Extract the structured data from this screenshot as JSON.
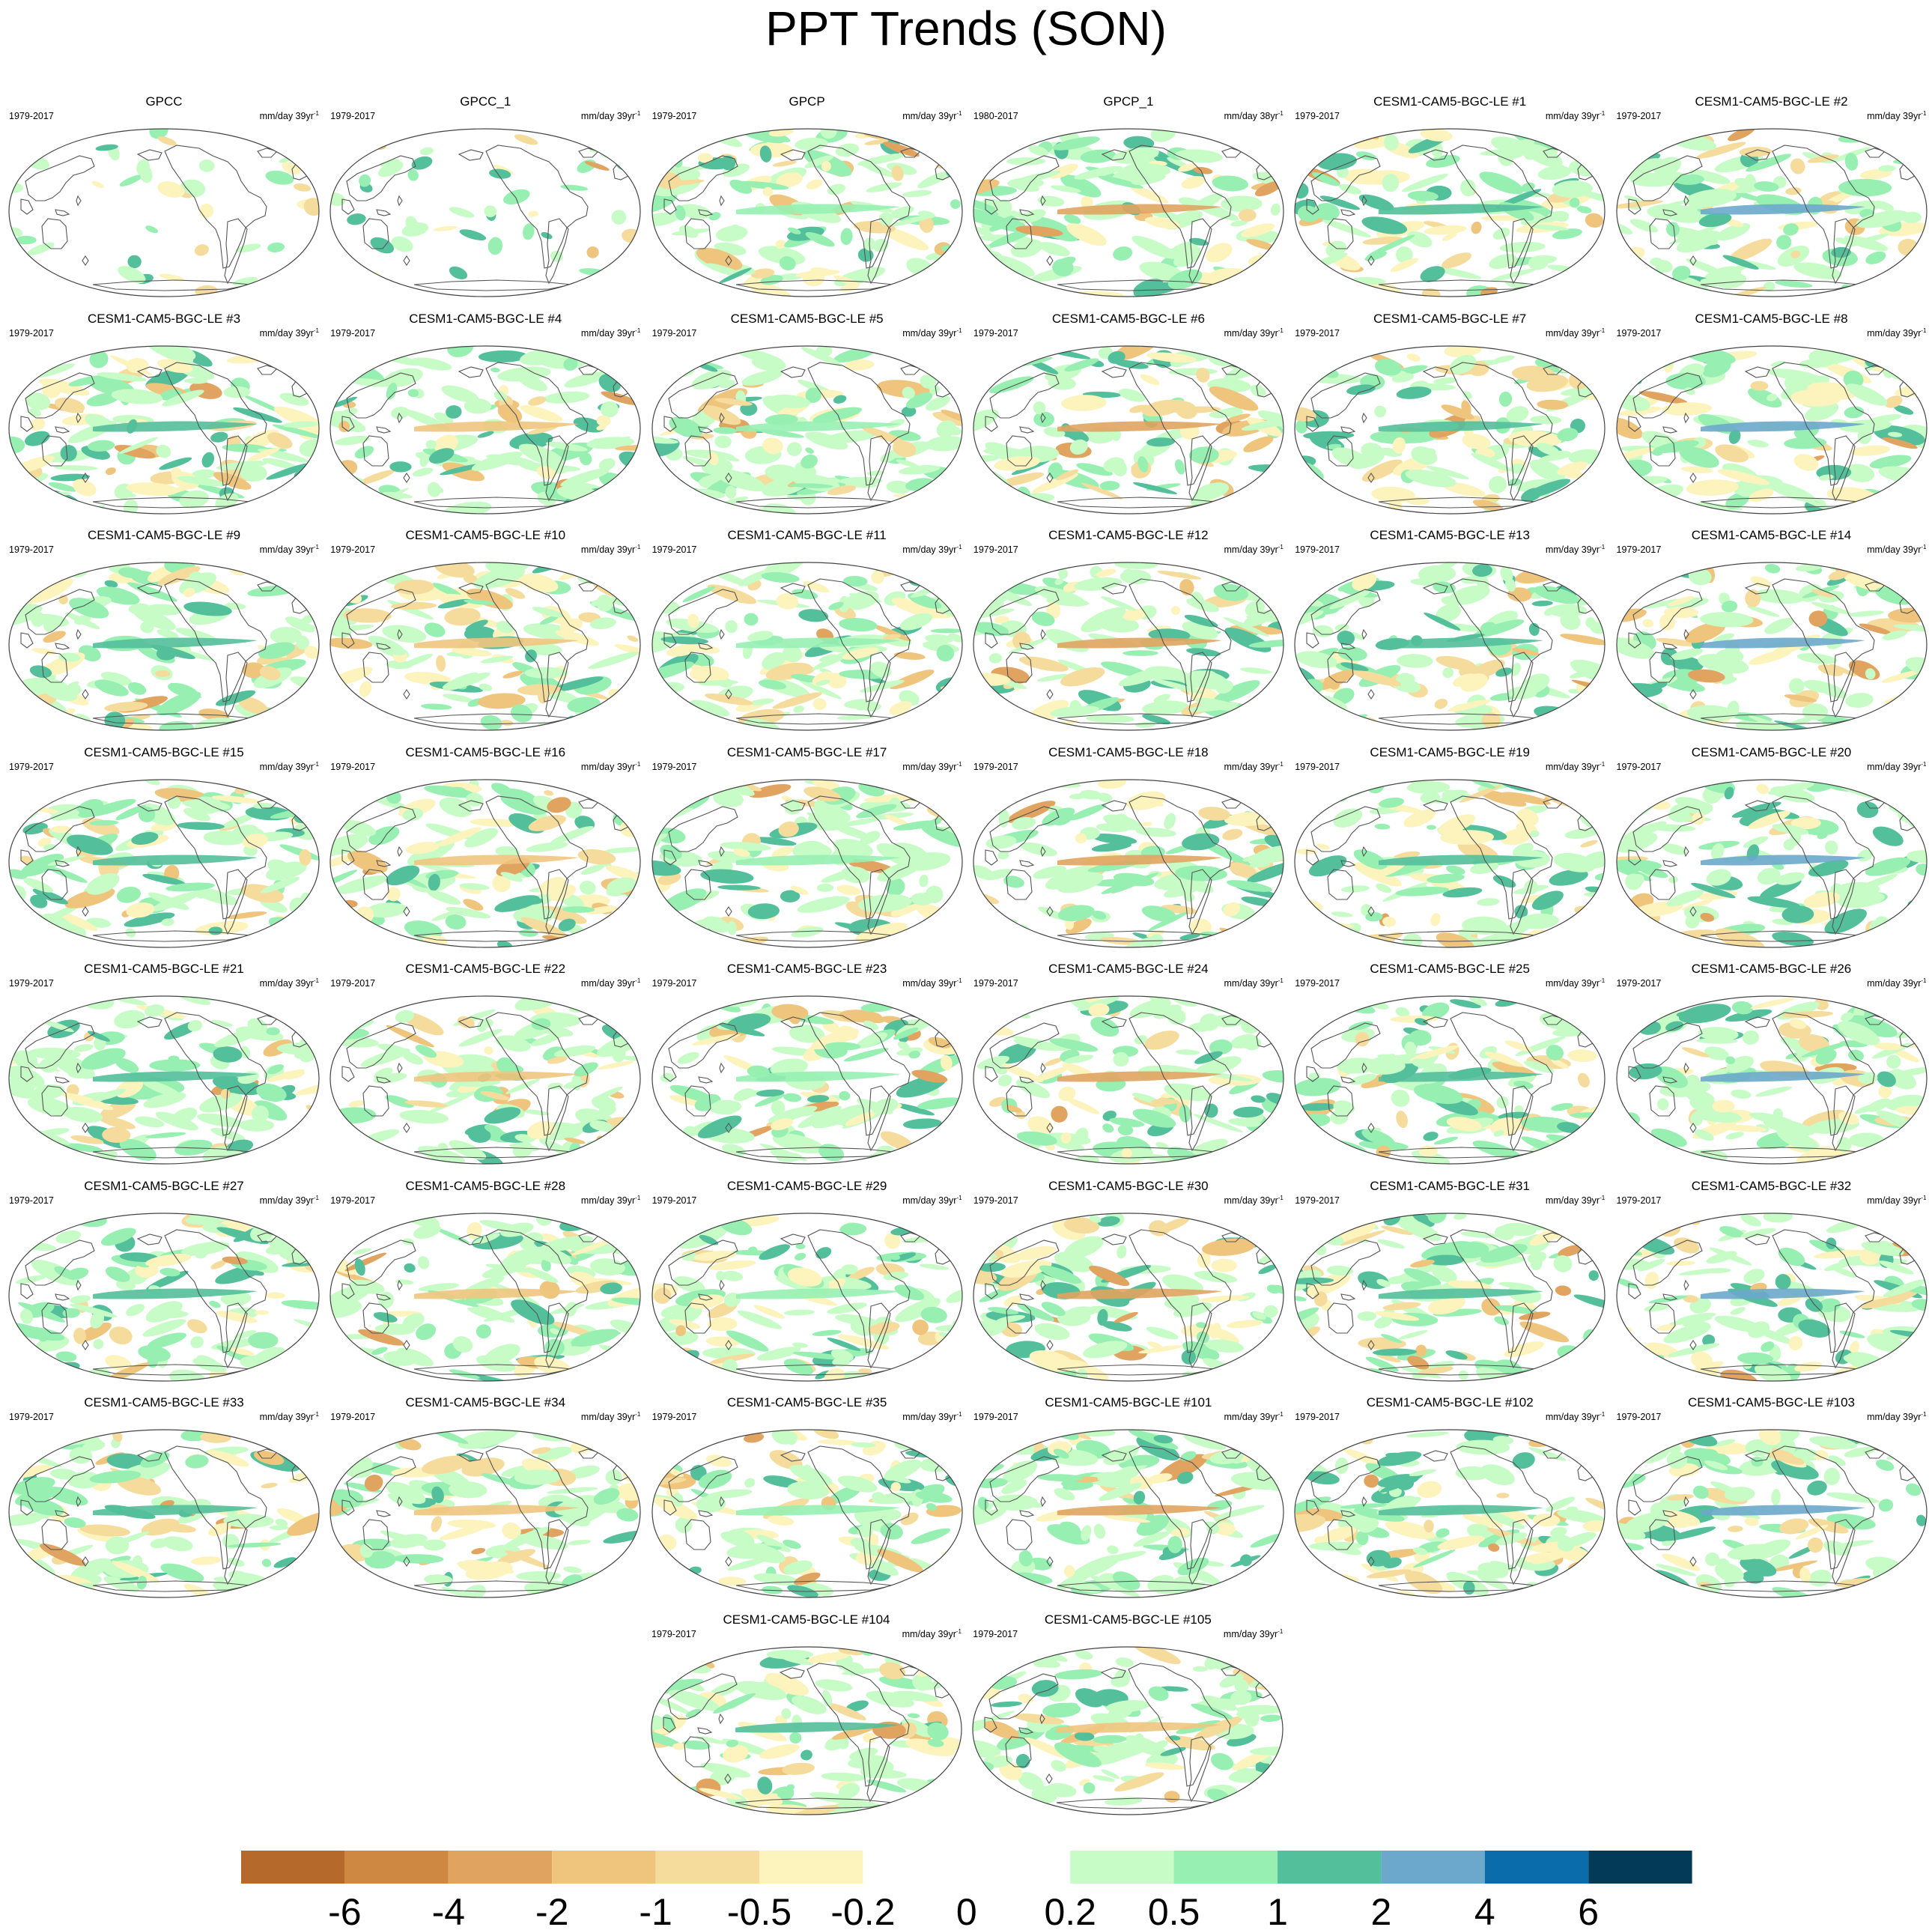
{
  "title": "PPT Trends (SON)",
  "units_prefix": "mm/day",
  "units_suffix": "yr",
  "units_exp": "-1",
  "panels": [
    {
      "title": "GPCC",
      "period": "1979-2017",
      "years": "39",
      "dataset": "obs-land"
    },
    {
      "title": "GPCC_1",
      "period": "1979-2017",
      "years": "39",
      "dataset": "obs-land"
    },
    {
      "title": "GPCP",
      "period": "1979-2017",
      "years": "39",
      "dataset": "obs"
    },
    {
      "title": "GPCP_1",
      "period": "1980-2017",
      "years": "38",
      "dataset": "obs"
    },
    {
      "title": "CESM1-CAM5-BGC-LE #1",
      "period": "1979-2017",
      "years": "39",
      "dataset": "model"
    },
    {
      "title": "CESM1-CAM5-BGC-LE #2",
      "period": "1979-2017",
      "years": "39",
      "dataset": "model"
    },
    {
      "title": "CESM1-CAM5-BGC-LE #3",
      "period": "1979-2017",
      "years": "39",
      "dataset": "model"
    },
    {
      "title": "CESM1-CAM5-BGC-LE #4",
      "period": "1979-2017",
      "years": "39",
      "dataset": "model"
    },
    {
      "title": "CESM1-CAM5-BGC-LE #5",
      "period": "1979-2017",
      "years": "39",
      "dataset": "model"
    },
    {
      "title": "CESM1-CAM5-BGC-LE #6",
      "period": "1979-2017",
      "years": "39",
      "dataset": "model"
    },
    {
      "title": "CESM1-CAM5-BGC-LE #7",
      "period": "1979-2017",
      "years": "39",
      "dataset": "model"
    },
    {
      "title": "CESM1-CAM5-BGC-LE #8",
      "period": "1979-2017",
      "years": "39",
      "dataset": "model"
    },
    {
      "title": "CESM1-CAM5-BGC-LE #9",
      "period": "1979-2017",
      "years": "39",
      "dataset": "model"
    },
    {
      "title": "CESM1-CAM5-BGC-LE #10",
      "period": "1979-2017",
      "years": "39",
      "dataset": "model"
    },
    {
      "title": "CESM1-CAM5-BGC-LE #11",
      "period": "1979-2017",
      "years": "39",
      "dataset": "model"
    },
    {
      "title": "CESM1-CAM5-BGC-LE #12",
      "period": "1979-2017",
      "years": "39",
      "dataset": "model"
    },
    {
      "title": "CESM1-CAM5-BGC-LE #13",
      "period": "1979-2017",
      "years": "39",
      "dataset": "model"
    },
    {
      "title": "CESM1-CAM5-BGC-LE #14",
      "period": "1979-2017",
      "years": "39",
      "dataset": "model"
    },
    {
      "title": "CESM1-CAM5-BGC-LE #15",
      "period": "1979-2017",
      "years": "39",
      "dataset": "model"
    },
    {
      "title": "CESM1-CAM5-BGC-LE #16",
      "period": "1979-2017",
      "years": "39",
      "dataset": "model"
    },
    {
      "title": "CESM1-CAM5-BGC-LE #17",
      "period": "1979-2017",
      "years": "39",
      "dataset": "model"
    },
    {
      "title": "CESM1-CAM5-BGC-LE #18",
      "period": "1979-2017",
      "years": "39",
      "dataset": "model"
    },
    {
      "title": "CESM1-CAM5-BGC-LE #19",
      "period": "1979-2017",
      "years": "39",
      "dataset": "model"
    },
    {
      "title": "CESM1-CAM5-BGC-LE #20",
      "period": "1979-2017",
      "years": "39",
      "dataset": "model"
    },
    {
      "title": "CESM1-CAM5-BGC-LE #21",
      "period": "1979-2017",
      "years": "39",
      "dataset": "model"
    },
    {
      "title": "CESM1-CAM5-BGC-LE #22",
      "period": "1979-2017",
      "years": "39",
      "dataset": "model"
    },
    {
      "title": "CESM1-CAM5-BGC-LE #23",
      "period": "1979-2017",
      "years": "39",
      "dataset": "model"
    },
    {
      "title": "CESM1-CAM5-BGC-LE #24",
      "period": "1979-2017",
      "years": "39",
      "dataset": "model"
    },
    {
      "title": "CESM1-CAM5-BGC-LE #25",
      "period": "1979-2017",
      "years": "39",
      "dataset": "model"
    },
    {
      "title": "CESM1-CAM5-BGC-LE #26",
      "period": "1979-2017",
      "years": "39",
      "dataset": "model"
    },
    {
      "title": "CESM1-CAM5-BGC-LE #27",
      "period": "1979-2017",
      "years": "39",
      "dataset": "model"
    },
    {
      "title": "CESM1-CAM5-BGC-LE #28",
      "period": "1979-2017",
      "years": "39",
      "dataset": "model"
    },
    {
      "title": "CESM1-CAM5-BGC-LE #29",
      "period": "1979-2017",
      "years": "39",
      "dataset": "model"
    },
    {
      "title": "CESM1-CAM5-BGC-LE #30",
      "period": "1979-2017",
      "years": "39",
      "dataset": "model"
    },
    {
      "title": "CESM1-CAM5-BGC-LE #31",
      "period": "1979-2017",
      "years": "39",
      "dataset": "model"
    },
    {
      "title": "CESM1-CAM5-BGC-LE #32",
      "period": "1979-2017",
      "years": "39",
      "dataset": "model"
    },
    {
      "title": "CESM1-CAM5-BGC-LE #33",
      "period": "1979-2017",
      "years": "39",
      "dataset": "model"
    },
    {
      "title": "CESM1-CAM5-BGC-LE #34",
      "period": "1979-2017",
      "years": "39",
      "dataset": "model"
    },
    {
      "title": "CESM1-CAM5-BGC-LE #35",
      "period": "1979-2017",
      "years": "39",
      "dataset": "model"
    },
    {
      "title": "CESM1-CAM5-BGC-LE #101",
      "period": "1979-2017",
      "years": "39",
      "dataset": "model"
    },
    {
      "title": "CESM1-CAM5-BGC-LE #102",
      "period": "1979-2017",
      "years": "39",
      "dataset": "model"
    },
    {
      "title": "CESM1-CAM5-BGC-LE #103",
      "period": "1979-2017",
      "years": "39",
      "dataset": "model"
    },
    {
      "title": "CESM1-CAM5-BGC-LE #104",
      "period": "1979-2017",
      "years": "39",
      "dataset": "model"
    },
    {
      "title": "CESM1-CAM5-BGC-LE #105",
      "period": "1979-2017",
      "years": "39",
      "dataset": "model"
    }
  ],
  "chart_data": {
    "type": "heatmap",
    "title": "PPT Trends (SON)",
    "projection": "Robinson",
    "panel_count": 44,
    "levels": [
      -6,
      -4,
      -2,
      -1,
      -0.5,
      -0.2,
      0,
      0.2,
      0.5,
      1,
      2,
      4,
      6
    ],
    "tick_labels": [
      "-6",
      "-4",
      "-2",
      "-1",
      "-0.5",
      "-0.2",
      "0",
      "0.2",
      "0.5",
      "1",
      "2",
      "4",
      "6"
    ],
    "colors": [
      "#b5692a",
      "#cf8842",
      "#e0a460",
      "#efc57e",
      "#f5dc9c",
      "#fdf3bc",
      "#ffffff",
      "#ffffff",
      "#c7fcc7",
      "#97efb2",
      "#53bf9b",
      "#6ba8cb",
      "#0a6cab",
      "#023a57"
    ]
  }
}
